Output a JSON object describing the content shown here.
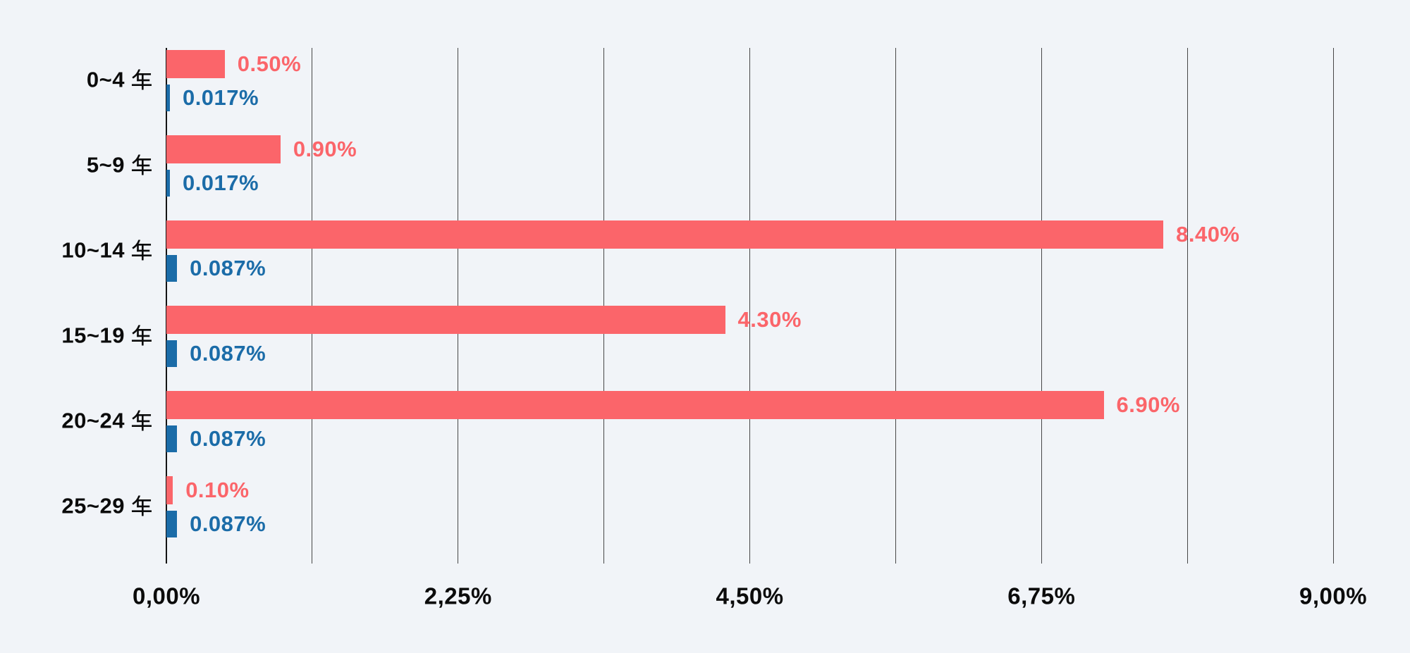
{
  "chart_data": {
    "type": "bar",
    "orientation": "horizontal",
    "title": "",
    "categories": [
      "0~4 年",
      "5~9 年",
      "10~14 年",
      "15~19 年",
      "20~24 年",
      "25~29 年"
    ],
    "series": [
      {
        "name": "red",
        "color": "#FB656A",
        "values": [
          0.5,
          0.9,
          8.4,
          4.3,
          6.9,
          0.1
        ],
        "labels": [
          "0.50%",
          "0.90%",
          "8.40%",
          "4.30%",
          "6.90%",
          "0.10%"
        ],
        "display_values": [
          0.45,
          0.88,
          7.69,
          4.31,
          7.23,
          0.05
        ]
      },
      {
        "name": "blue",
        "color": "#1B6CA8",
        "values": [
          0.017,
          0.017,
          0.087,
          0.087,
          0.087,
          0.087
        ],
        "labels": [
          "0.017%",
          "0.017%",
          "0.087%",
          "0.087%",
          "0.087%",
          "0.087%"
        ],
        "display_values": [
          0.027,
          0.027,
          0.082,
          0.082,
          0.082,
          0.082
        ]
      }
    ],
    "x_axis": {
      "min": 0,
      "max": 9,
      "tick_labels": [
        "0,00%",
        "2,25%",
        "4,50%",
        "6,75%",
        "9,00%"
      ],
      "gridline_count": 9,
      "gridline_interval_pct": 1.125
    },
    "legend": "none",
    "grid": "vertical-only"
  },
  "colors": {
    "background": "#F1F4F8",
    "gridline": "#474747",
    "axis_line": "#141414",
    "text": "#0B0B0B"
  }
}
